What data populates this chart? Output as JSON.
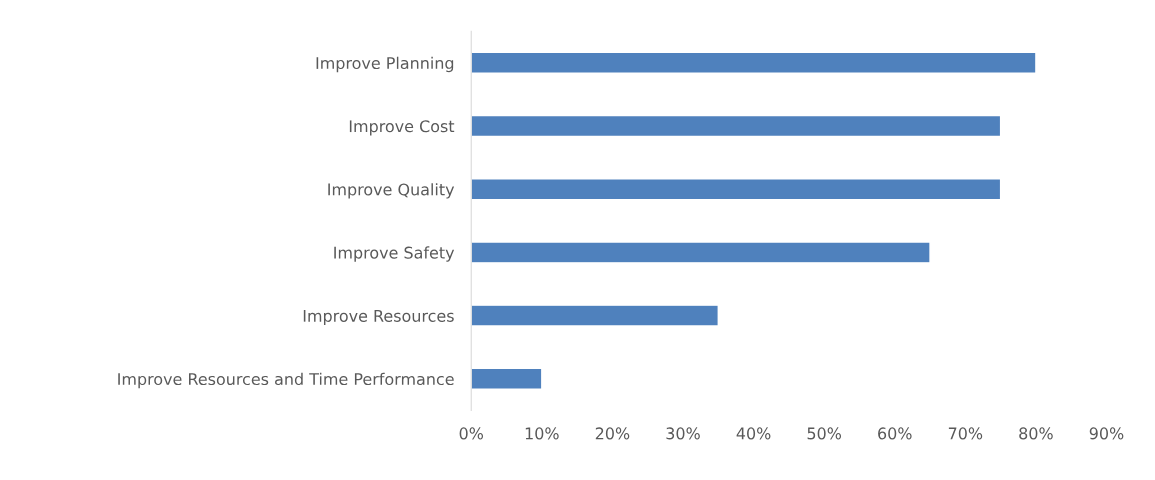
{
  "chart_data": {
    "type": "bar",
    "orientation": "horizontal",
    "categories": [
      "Improve Planning",
      "Improve Cost",
      "Improve Quality",
      "Improve Safety",
      "Improve Resources",
      "Improve Resources and Time Performance"
    ],
    "values": [
      80,
      75,
      75,
      65,
      35,
      10
    ],
    "color": "#4f81bd",
    "xlim": [
      0,
      90
    ],
    "xticks": [
      {
        "value": 0,
        "label": "0%"
      },
      {
        "value": 10,
        "label": "10%"
      },
      {
        "value": 20,
        "label": "20%"
      },
      {
        "value": 30,
        "label": "30%"
      },
      {
        "value": 40,
        "label": "40%"
      },
      {
        "value": 50,
        "label": "50%"
      },
      {
        "value": 60,
        "label": "60%"
      },
      {
        "value": 70,
        "label": "70%"
      },
      {
        "value": 80,
        "label": "80%"
      },
      {
        "value": 90,
        "label": "90%"
      }
    ],
    "grid": false,
    "legend": false
  }
}
